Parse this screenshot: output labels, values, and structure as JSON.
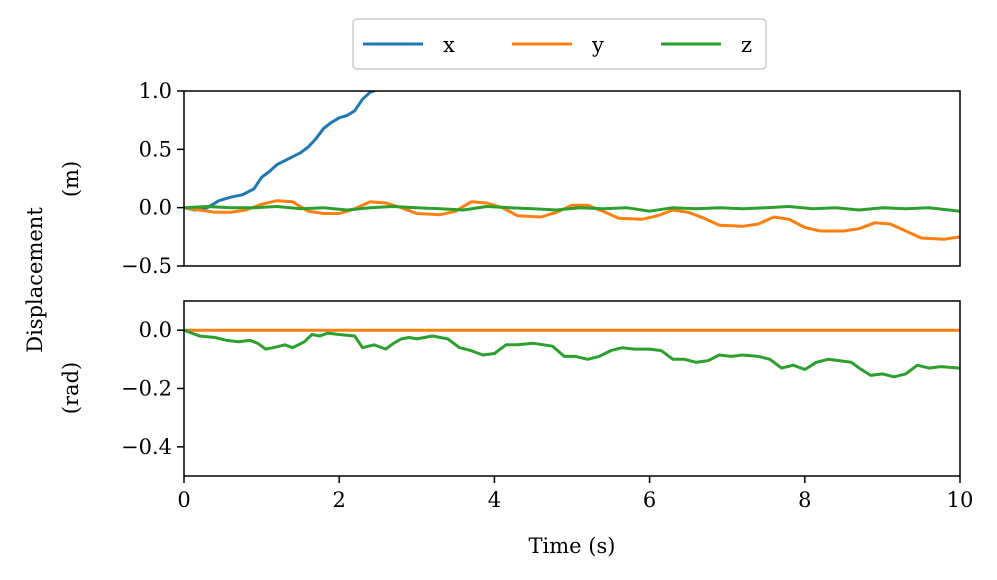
{
  "chart_data": [
    {
      "type": "line",
      "panel": "top",
      "ylabel_line2": "(m)",
      "xlim": [
        0,
        10
      ],
      "ylim": [
        -0.5,
        1.0
      ],
      "yticks": [
        1.0,
        0.5,
        0.0,
        -0.5
      ],
      "ytick_labels": [
        "1.0",
        "0.5",
        "0.0",
        "−0.5"
      ],
      "x_ticklabels_visible": false,
      "series": [
        {
          "name": "x",
          "color": "#1f77b4",
          "points": [
            [
              0,
              0.0
            ],
            [
              0.15,
              -0.02
            ],
            [
              0.3,
              0.0
            ],
            [
              0.45,
              0.06
            ],
            [
              0.6,
              0.09
            ],
            [
              0.75,
              0.11
            ],
            [
              0.9,
              0.16
            ],
            [
              1.0,
              0.26
            ],
            [
              1.1,
              0.31
            ],
            [
              1.2,
              0.37
            ],
            [
              1.35,
              0.42
            ],
            [
              1.5,
              0.47
            ],
            [
              1.6,
              0.52
            ],
            [
              1.7,
              0.59
            ],
            [
              1.8,
              0.68
            ],
            [
              1.9,
              0.73
            ],
            [
              2.0,
              0.77
            ],
            [
              2.1,
              0.79
            ],
            [
              2.2,
              0.83
            ],
            [
              2.3,
              0.93
            ],
            [
              2.4,
              0.99
            ],
            [
              2.45,
              1.0
            ]
          ]
        },
        {
          "name": "y",
          "color": "#ff7f0e",
          "points": [
            [
              0,
              0.0
            ],
            [
              0.2,
              -0.02
            ],
            [
              0.4,
              -0.04
            ],
            [
              0.6,
              -0.04
            ],
            [
              0.8,
              -0.02
            ],
            [
              1.0,
              0.03
            ],
            [
              1.2,
              0.06
            ],
            [
              1.4,
              0.05
            ],
            [
              1.6,
              -0.03
            ],
            [
              1.8,
              -0.05
            ],
            [
              2.0,
              -0.05
            ],
            [
              2.2,
              -0.01
            ],
            [
              2.4,
              0.05
            ],
            [
              2.6,
              0.04
            ],
            [
              2.8,
              0.0
            ],
            [
              3.0,
              -0.05
            ],
            [
              3.3,
              -0.06
            ],
            [
              3.5,
              -0.03
            ],
            [
              3.7,
              0.05
            ],
            [
              3.9,
              0.04
            ],
            [
              4.1,
              0.0
            ],
            [
              4.3,
              -0.07
            ],
            [
              4.6,
              -0.08
            ],
            [
              4.8,
              -0.04
            ],
            [
              5.0,
              0.02
            ],
            [
              5.2,
              0.02
            ],
            [
              5.4,
              -0.03
            ],
            [
              5.6,
              -0.09
            ],
            [
              5.9,
              -0.1
            ],
            [
              6.1,
              -0.07
            ],
            [
              6.3,
              -0.02
            ],
            [
              6.5,
              -0.04
            ],
            [
              6.7,
              -0.09
            ],
            [
              6.9,
              -0.15
            ],
            [
              7.2,
              -0.16
            ],
            [
              7.4,
              -0.14
            ],
            [
              7.6,
              -0.08
            ],
            [
              7.8,
              -0.1
            ],
            [
              8.0,
              -0.17
            ],
            [
              8.2,
              -0.2
            ],
            [
              8.5,
              -0.2
            ],
            [
              8.7,
              -0.18
            ],
            [
              8.9,
              -0.13
            ],
            [
              9.1,
              -0.14
            ],
            [
              9.3,
              -0.2
            ],
            [
              9.5,
              -0.26
            ],
            [
              9.8,
              -0.27
            ],
            [
              10.0,
              -0.25
            ]
          ]
        },
        {
          "name": "z",
          "color": "#2ca02c",
          "points": [
            [
              0,
              0.0
            ],
            [
              0.3,
              0.01
            ],
            [
              0.6,
              0.0
            ],
            [
              0.9,
              0.0
            ],
            [
              1.2,
              0.01
            ],
            [
              1.5,
              -0.01
            ],
            [
              1.8,
              0.0
            ],
            [
              2.1,
              -0.02
            ],
            [
              2.4,
              0.0
            ],
            [
              2.7,
              0.01
            ],
            [
              3.0,
              0.0
            ],
            [
              3.3,
              -0.01
            ],
            [
              3.6,
              -0.02
            ],
            [
              3.9,
              0.01
            ],
            [
              4.2,
              0.0
            ],
            [
              4.5,
              -0.01
            ],
            [
              4.8,
              -0.02
            ],
            [
              5.1,
              0.0
            ],
            [
              5.4,
              -0.01
            ],
            [
              5.7,
              0.0
            ],
            [
              6.0,
              -0.03
            ],
            [
              6.3,
              0.0
            ],
            [
              6.6,
              -0.01
            ],
            [
              6.9,
              0.0
            ],
            [
              7.2,
              -0.01
            ],
            [
              7.5,
              0.0
            ],
            [
              7.8,
              0.01
            ],
            [
              8.1,
              -0.01
            ],
            [
              8.4,
              0.0
            ],
            [
              8.7,
              -0.02
            ],
            [
              9.0,
              0.0
            ],
            [
              9.3,
              -0.01
            ],
            [
              9.6,
              0.0
            ],
            [
              10.0,
              -0.03
            ]
          ]
        }
      ]
    },
    {
      "type": "line",
      "panel": "bottom",
      "ylabel_line2": "(rad)",
      "xlim": [
        0,
        10
      ],
      "ylim": [
        -0.5,
        0.1
      ],
      "yticks": [
        0.0,
        -0.2,
        -0.4
      ],
      "ytick_labels": [
        "0.0",
        "−0.2",
        "−0.4"
      ],
      "xticks": [
        0,
        2,
        4,
        6,
        8,
        10
      ],
      "xtick_labels": [
        "0",
        "2",
        "4",
        "6",
        "8",
        "10"
      ],
      "xlabel": "Time (s)",
      "series": [
        {
          "name": "y",
          "color": "#ff7f0e",
          "points": [
            [
              0,
              0.0
            ],
            [
              10.0,
              0.0
            ]
          ]
        },
        {
          "name": "z",
          "color": "#2ca02c",
          "points": [
            [
              0,
              0.0
            ],
            [
              0.1,
              -0.01
            ],
            [
              0.2,
              -0.02
            ],
            [
              0.4,
              -0.025
            ],
            [
              0.55,
              -0.035
            ],
            [
              0.7,
              -0.04
            ],
            [
              0.85,
              -0.035
            ],
            [
              0.95,
              -0.045
            ],
            [
              1.05,
              -0.065
            ],
            [
              1.15,
              -0.06
            ],
            [
              1.3,
              -0.05
            ],
            [
              1.4,
              -0.06
            ],
            [
              1.55,
              -0.04
            ],
            [
              1.65,
              -0.015
            ],
            [
              1.75,
              -0.02
            ],
            [
              1.85,
              -0.01
            ],
            [
              2.0,
              -0.015
            ],
            [
              2.2,
              -0.02
            ],
            [
              2.3,
              -0.06
            ],
            [
              2.45,
              -0.05
            ],
            [
              2.6,
              -0.065
            ],
            [
              2.7,
              -0.045
            ],
            [
              2.8,
              -0.03
            ],
            [
              2.9,
              -0.025
            ],
            [
              3.0,
              -0.03
            ],
            [
              3.2,
              -0.02
            ],
            [
              3.4,
              -0.03
            ],
            [
              3.55,
              -0.06
            ],
            [
              3.7,
              -0.07
            ],
            [
              3.85,
              -0.085
            ],
            [
              4.0,
              -0.08
            ],
            [
              4.15,
              -0.05
            ],
            [
              4.3,
              -0.05
            ],
            [
              4.5,
              -0.045
            ],
            [
              4.75,
              -0.055
            ],
            [
              4.9,
              -0.09
            ],
            [
              5.05,
              -0.09
            ],
            [
              5.2,
              -0.1
            ],
            [
              5.35,
              -0.09
            ],
            [
              5.5,
              -0.07
            ],
            [
              5.65,
              -0.06
            ],
            [
              5.8,
              -0.065
            ],
            [
              6.0,
              -0.065
            ],
            [
              6.15,
              -0.07
            ],
            [
              6.3,
              -0.1
            ],
            [
              6.45,
              -0.1
            ],
            [
              6.6,
              -0.11
            ],
            [
              6.75,
              -0.105
            ],
            [
              6.9,
              -0.085
            ],
            [
              7.05,
              -0.09
            ],
            [
              7.2,
              -0.085
            ],
            [
              7.4,
              -0.09
            ],
            [
              7.55,
              -0.1
            ],
            [
              7.7,
              -0.13
            ],
            [
              7.85,
              -0.12
            ],
            [
              8.0,
              -0.135
            ],
            [
              8.15,
              -0.11
            ],
            [
              8.3,
              -0.1
            ],
            [
              8.45,
              -0.105
            ],
            [
              8.6,
              -0.11
            ],
            [
              8.7,
              -0.13
            ],
            [
              8.85,
              -0.155
            ],
            [
              9.0,
              -0.15
            ],
            [
              9.15,
              -0.16
            ],
            [
              9.3,
              -0.15
            ],
            [
              9.45,
              -0.12
            ],
            [
              9.6,
              -0.13
            ],
            [
              9.75,
              -0.125
            ],
            [
              10.0,
              -0.13
            ]
          ]
        }
      ]
    }
  ],
  "shared": {
    "ylabel_main": "Displacement",
    "legend": [
      {
        "label": "x",
        "color": "#1f77b4"
      },
      {
        "label": "y",
        "color": "#ff7f0e"
      },
      {
        "label": "z",
        "color": "#2ca02c"
      }
    ],
    "legend_placement": "top-center",
    "grid": false
  }
}
